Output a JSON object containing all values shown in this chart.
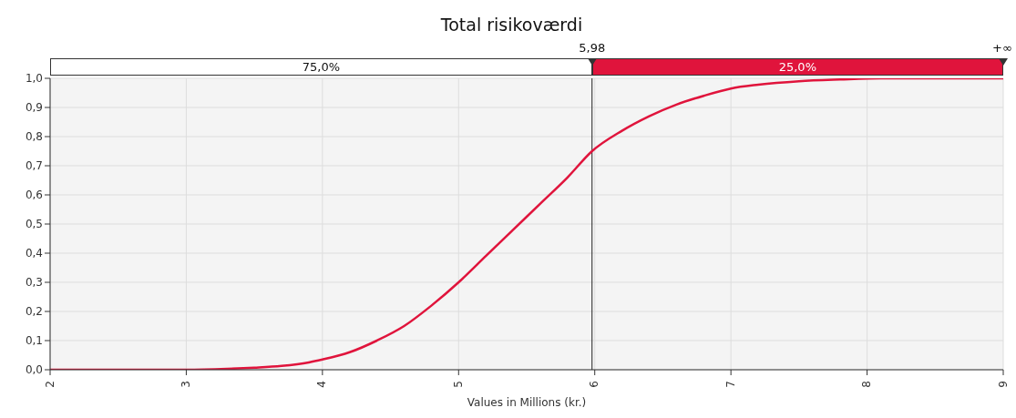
{
  "chart_data": {
    "type": "line",
    "title": "Total risikoværdi",
    "xlabel": "Values in Millions (kr.)",
    "x": [
      2,
      2.5,
      3,
      3.3,
      3.5,
      3.7,
      3.9,
      4,
      4.2,
      4.4,
      4.6,
      4.8,
      5,
      5.2,
      5.4,
      5.6,
      5.8,
      5.98,
      6.2,
      6.4,
      6.6,
      6.8,
      7,
      7.2,
      7.5,
      7.8,
      8.1,
      9
    ],
    "series": [
      {
        "color": "#e0143c",
        "values": [
          0,
          0,
          0,
          0.003,
          0.007,
          0.013,
          0.025,
          0.035,
          0.06,
          0.1,
          0.15,
          0.22,
          0.3,
          0.39,
          0.48,
          0.57,
          0.66,
          0.75,
          0.82,
          0.87,
          0.91,
          0.94,
          0.965,
          0.978,
          0.99,
          0.996,
          1,
          1
        ]
      }
    ],
    "xlim": [
      2,
      9
    ],
    "xticks": [
      2,
      3,
      4,
      5,
      6,
      7,
      8,
      9
    ],
    "ylim": [
      0,
      1
    ],
    "yticks": [
      {
        "value": 0,
        "label": "0,0"
      },
      {
        "value": 0.1,
        "label": "0,1"
      },
      {
        "value": 0.2,
        "label": "0,2"
      },
      {
        "value": 0.3,
        "label": "0,3"
      },
      {
        "value": 0.4,
        "label": "0,4"
      },
      {
        "value": 0.5,
        "label": "0,5"
      },
      {
        "value": 0.6,
        "label": "0,6"
      },
      {
        "value": 0.7,
        "label": "0,7"
      },
      {
        "value": 0.8,
        "label": "0,8"
      },
      {
        "value": 0.9,
        "label": "0,9"
      },
      {
        "value": 1,
        "label": "1,0"
      }
    ],
    "grid": true,
    "marker": "none",
    "line_style": "solid",
    "legend": false,
    "ref_lines": [
      {
        "axis": "x",
        "value": 5.98,
        "label": "5,98"
      }
    ],
    "annotations": [
      "75,0%",
      "25,0%",
      "+∞"
    ]
  }
}
